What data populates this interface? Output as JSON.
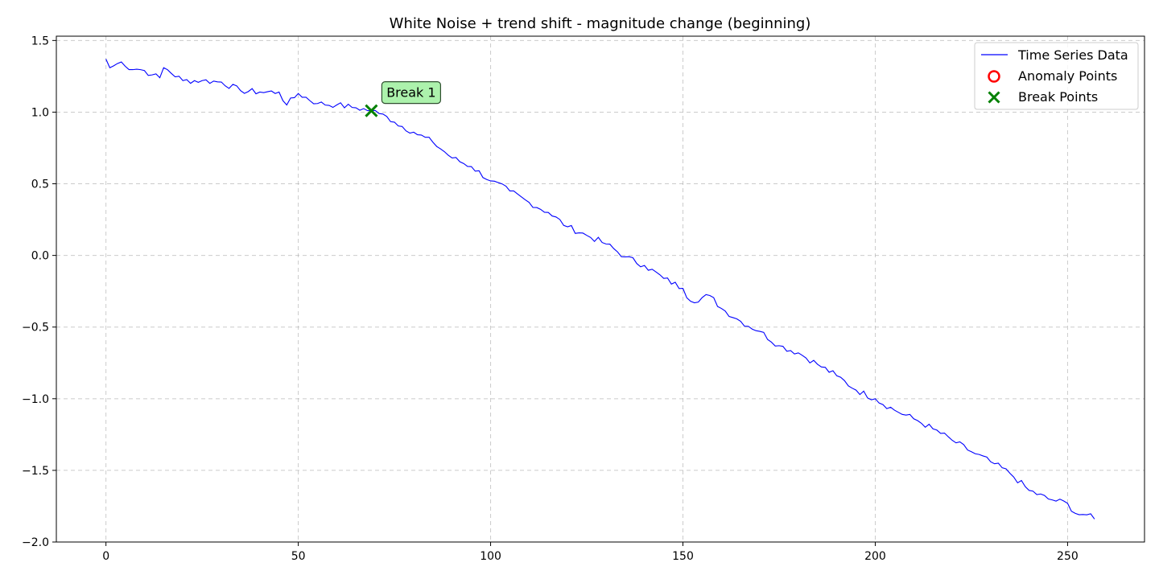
{
  "chart_data": {
    "type": "line",
    "title": "White Noise + trend shift - magnitude change (beginning)",
    "xlabel": "",
    "ylabel": "",
    "xlim": [
      -12.9,
      270
    ],
    "ylim": [
      -2.0,
      1.53
    ],
    "x_ticks": [
      0,
      50,
      100,
      150,
      200,
      250
    ],
    "y_ticks": [
      1.5,
      1.0,
      0.5,
      0.0,
      -0.5,
      -1.0,
      -1.5,
      -2.0
    ],
    "x_tick_labels": [
      "0",
      "50",
      "100",
      "150",
      "200",
      "250"
    ],
    "y_tick_labels": [
      "1.5",
      "1.0",
      "0.5",
      "0.0",
      "−0.5",
      "−1.0",
      "−1.5",
      "−2.0"
    ],
    "grid": true,
    "legend_position": "top-right",
    "legend": [
      {
        "label": "Time Series Data",
        "marker": "line",
        "color": "#0000ff"
      },
      {
        "label": "Anomaly Points",
        "marker": "circle",
        "color": "#ff0000"
      },
      {
        "label": "Break Points",
        "marker": "x",
        "color": "#008000"
      }
    ],
    "series": [
      {
        "name": "Time Series Data",
        "color": "#0000ff",
        "anchors": [
          [
            0,
            1.37
          ],
          [
            1,
            1.31
          ],
          [
            4,
            1.35
          ],
          [
            5,
            1.32
          ],
          [
            10,
            1.29
          ],
          [
            12,
            1.26
          ],
          [
            14,
            1.24
          ],
          [
            15,
            1.31
          ],
          [
            20,
            1.22
          ],
          [
            25,
            1.22
          ],
          [
            30,
            1.21
          ],
          [
            35,
            1.15
          ],
          [
            40,
            1.14
          ],
          [
            45,
            1.14
          ],
          [
            47,
            1.05
          ],
          [
            50,
            1.13
          ],
          [
            55,
            1.06
          ],
          [
            60,
            1.05
          ],
          [
            65,
            1.03
          ],
          [
            69,
            1.01
          ],
          [
            71,
            0.99
          ],
          [
            73,
            0.97
          ],
          [
            75,
            0.93
          ],
          [
            80,
            0.86
          ],
          [
            85,
            0.79
          ],
          [
            90,
            0.68
          ],
          [
            95,
            0.62
          ],
          [
            100,
            0.52
          ],
          [
            105,
            0.45
          ],
          [
            110,
            0.37
          ],
          [
            115,
            0.3
          ],
          [
            120,
            0.2
          ],
          [
            125,
            0.14
          ],
          [
            130,
            0.08
          ],
          [
            135,
            -0.01
          ],
          [
            140,
            -0.07
          ],
          [
            145,
            -0.16
          ],
          [
            150,
            -0.23
          ],
          [
            152,
            -0.32
          ],
          [
            157,
            -0.28
          ],
          [
            160,
            -0.37
          ],
          [
            165,
            -0.46
          ],
          [
            170,
            -0.53
          ],
          [
            175,
            -0.63
          ],
          [
            180,
            -0.68
          ],
          [
            185,
            -0.76
          ],
          [
            190,
            -0.84
          ],
          [
            195,
            -0.94
          ],
          [
            200,
            -1.0
          ],
          [
            205,
            -1.08
          ],
          [
            210,
            -1.14
          ],
          [
            215,
            -1.21
          ],
          [
            220,
            -1.29
          ],
          [
            225,
            -1.37
          ],
          [
            230,
            -1.44
          ],
          [
            235,
            -1.52
          ],
          [
            240,
            -1.64
          ],
          [
            245,
            -1.7
          ],
          [
            250,
            -1.73
          ],
          [
            252,
            -1.8
          ],
          [
            255,
            -1.81
          ],
          [
            257,
            -1.84
          ]
        ],
        "n_points": 258
      }
    ],
    "anomaly_points": [],
    "break_points": [
      {
        "x": 69,
        "y": 1.01,
        "label": "Break 1"
      }
    ]
  }
}
